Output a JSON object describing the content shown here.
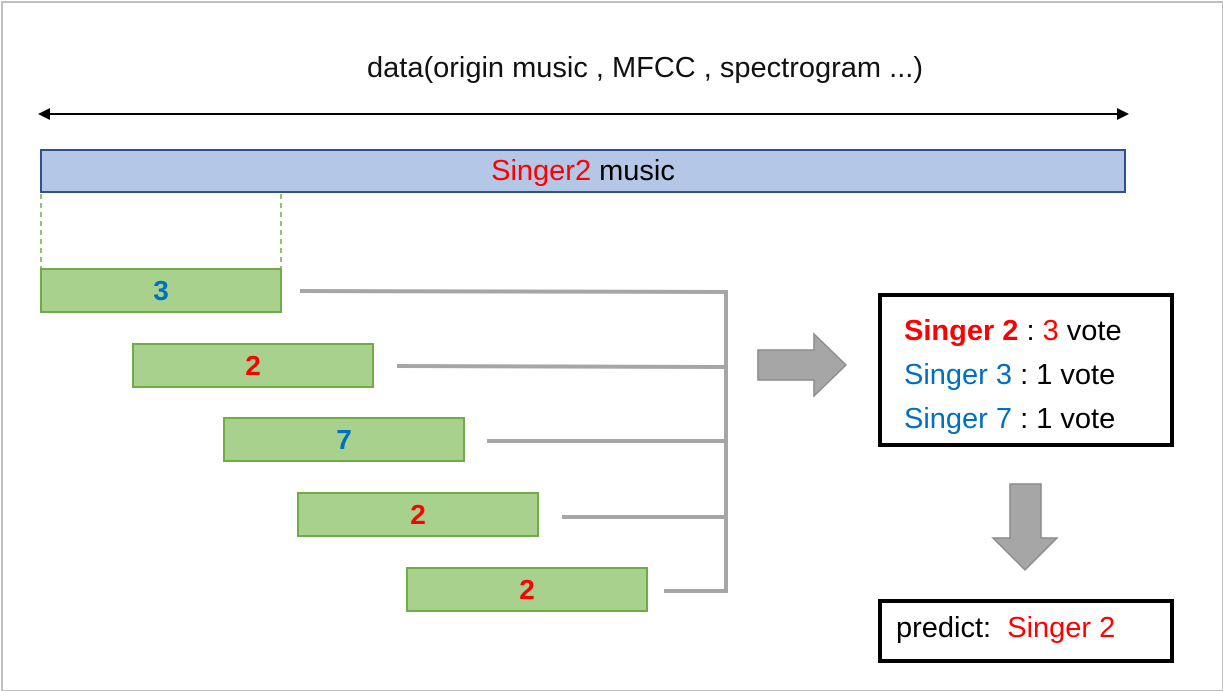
{
  "title": "data(origin music , MFCC , spectrogram ...)",
  "bar": {
    "singer": "Singer2",
    "suffix": " music"
  },
  "segments": [
    {
      "label": "3",
      "color": "#0070c0"
    },
    {
      "label": "2",
      "color": "#ff0000"
    },
    {
      "label": "7",
      "color": "#0070c0"
    },
    {
      "label": "2",
      "color": "#ff0000"
    },
    {
      "label": "2",
      "color": "#ff0000"
    }
  ],
  "votes": [
    {
      "singer": "Singer 2",
      "sep": " : ",
      "count": "3",
      "unit": " vote"
    },
    {
      "singer": "Singer 3",
      "sep": " : ",
      "count": "1",
      "unit": " vote"
    },
    {
      "singer": "Singer 7",
      "sep": " : ",
      "count": "1",
      "unit": " vote"
    }
  ],
  "predict": {
    "label": "predict: ",
    "value": "Singer 2"
  },
  "colors": {
    "red": "#ff0000",
    "blue": "#0070c0",
    "bar": "#b4c7e7",
    "segment": "#a9d18e",
    "arrow": "#a6a6a6"
  }
}
